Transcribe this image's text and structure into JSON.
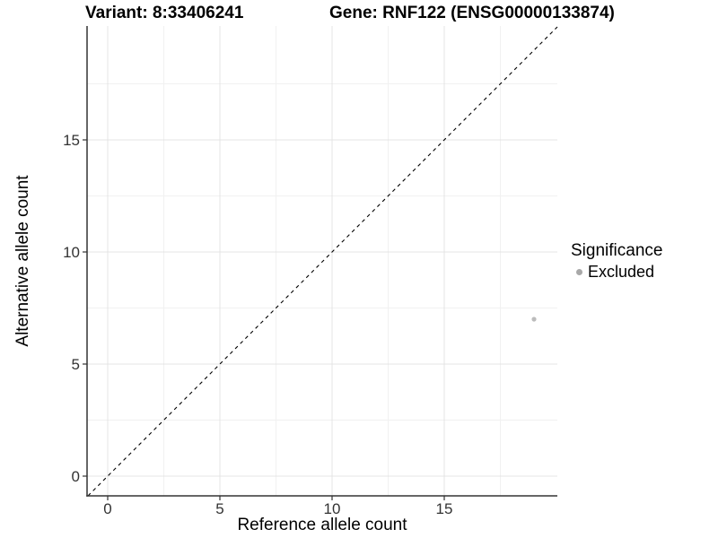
{
  "titles": {
    "variant": "Variant: 8:33406241",
    "gene": "Gene: RNF122 (ENSG00000133874)"
  },
  "legend": {
    "title": "Significance",
    "items": [
      {
        "label": "Excluded",
        "color": "#a8a8a8"
      }
    ]
  },
  "chart_data": {
    "type": "scatter",
    "title_left": "Variant: 8:33406241",
    "title_right": "Gene: RNF122 (ENSG00000133874)",
    "xlabel": "Reference allele count",
    "ylabel": "Alternative allele count",
    "xlim": [
      -0.92,
      20.04
    ],
    "ylim": [
      -0.88,
      20.08
    ],
    "x_ticks": [
      0,
      5,
      10,
      15
    ],
    "y_ticks": [
      0,
      5,
      10,
      15
    ],
    "x_minor_ticks": [
      2.5,
      7.5,
      12.5,
      17.5
    ],
    "y_minor_ticks": [
      2.5,
      7.5,
      12.5,
      17.5
    ],
    "grid": true,
    "legend_position": "right",
    "series": [
      {
        "name": "Excluded",
        "color": "#bcbcbc",
        "points": [
          {
            "x": 19,
            "y": 7
          }
        ]
      }
    ],
    "reference_line": {
      "kind": "abline",
      "slope": 1,
      "intercept": 0,
      "style": "dashed",
      "color": "#000000"
    }
  },
  "colors": {
    "background": "#ffffff",
    "axis_line": "#333333",
    "tick_label": "#333333",
    "grid_major": "#e4e4e4",
    "grid_minor": "#f1f1f1",
    "point": "#bcbcbc",
    "legend_key": "#a8a8a8"
  }
}
